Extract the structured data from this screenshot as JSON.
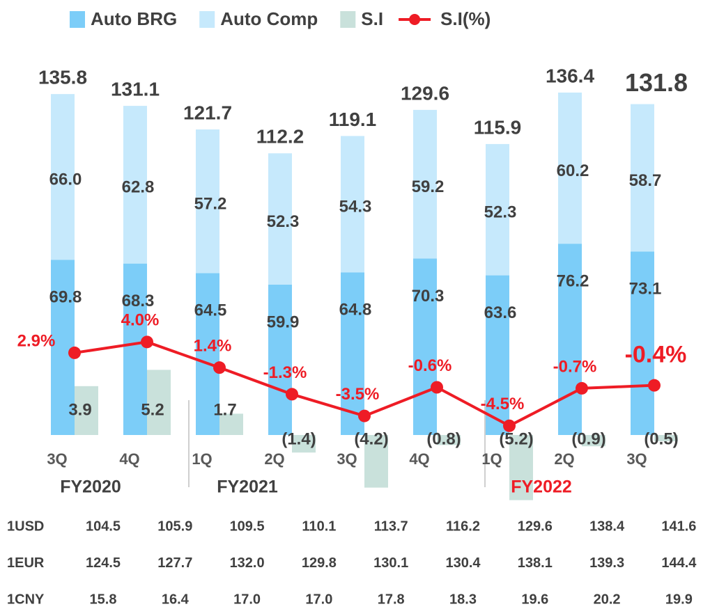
{
  "chart_data": {
    "type": "bar",
    "categories": [
      "3Q",
      "4Q",
      "1Q",
      "2Q",
      "3Q",
      "4Q",
      "1Q",
      "2Q",
      "3Q"
    ],
    "groups": [
      {
        "label": "FY2020",
        "span": 2,
        "color": "#404040"
      },
      {
        "label": "FY2021",
        "span": 4,
        "color": "#404040"
      },
      {
        "label": "FY2022",
        "span": 3,
        "color": "#ee1c25"
      }
    ],
    "series": [
      {
        "name": "Auto BRG",
        "color": "#7ccdf8",
        "axis": "y",
        "stack": true,
        "values": [
          69.8,
          68.3,
          64.5,
          59.9,
          64.8,
          70.3,
          63.6,
          76.2,
          73.1
        ]
      },
      {
        "name": "Auto Comp",
        "color": "#c6e9fc",
        "axis": "y",
        "stack": true,
        "values": [
          66.0,
          62.8,
          57.2,
          52.3,
          54.3,
          59.2,
          52.3,
          60.2,
          58.7
        ],
        "value_labels": [
          "66.0",
          "62.8",
          "57.2",
          "52.3",
          "54.3",
          "59.2",
          "52.3",
          "60.2",
          "58.7"
        ]
      },
      {
        "name": "S.I",
        "color": "#c9e1db",
        "axis": "y3",
        "values": [
          3.9,
          5.2,
          1.7,
          -1.4,
          -4.2,
          -0.8,
          -5.2,
          -0.9,
          -0.5
        ],
        "value_labels": [
          "3.9",
          "5.2",
          "1.7",
          "(1.4)",
          "(4.2)",
          "(0.8)",
          "(5.2)",
          "(0.9)",
          "(0.5)"
        ]
      },
      {
        "name": "S.I(%)",
        "color": "#ee1c25",
        "axis": "y2",
        "line": true,
        "values": [
          2.9,
          4.0,
          1.4,
          -1.3,
          -3.5,
          -0.6,
          -4.5,
          -0.7,
          -0.4
        ],
        "value_labels": [
          "2.9%",
          "4.0%",
          "1.4%",
          "-1.3%",
          "-3.5%",
          "-0.6%",
          "-4.5%",
          "-0.7%",
          "-0.4%"
        ]
      }
    ],
    "totals": [
      135.8,
      131.1,
      121.7,
      112.2,
      119.1,
      129.6,
      115.9,
      136.4,
      131.8
    ],
    "ylim": [
      0,
      140
    ],
    "y2lim": [
      -6,
      6
    ],
    "y3lim": [
      -5,
      5
    ]
  },
  "table": {
    "rows": [
      {
        "label": "1USD",
        "cells": [
          "104.5",
          "105.9",
          "109.5",
          "110.1",
          "113.7",
          "116.2",
          "129.6",
          "138.4",
          "141.6"
        ]
      },
      {
        "label": "1EUR",
        "cells": [
          "124.5",
          "127.7",
          "132.0",
          "129.8",
          "130.1",
          "130.4",
          "138.1",
          "139.3",
          "144.4"
        ]
      },
      {
        "label": "1CNY",
        "cells": [
          "15.8",
          "16.4",
          "17.0",
          "17.0",
          "17.8",
          "18.3",
          "19.6",
          "20.2",
          "19.9"
        ]
      }
    ]
  }
}
